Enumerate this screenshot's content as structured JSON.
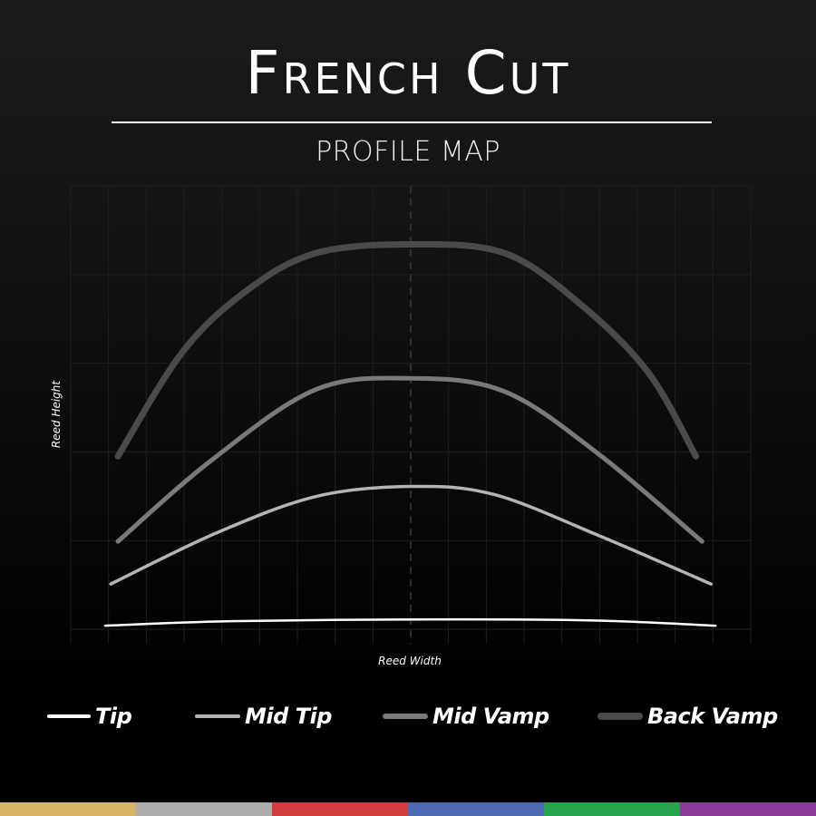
{
  "header": {
    "title": "French Cut",
    "subtitle": "PROFILE MAP"
  },
  "chart_data": {
    "type": "line",
    "xlabel": "Reed Width",
    "ylabel": "Reed Height",
    "xlim": [
      0,
      18
    ],
    "ylim": [
      0,
      5
    ],
    "grid": true,
    "center_line": "dashed",
    "legend_placement": "bottom",
    "series": [
      {
        "name": "Tip",
        "color": "#ffffff",
        "x": [
          0.91,
          4.12,
          9.04,
          13.72,
          17.07
        ],
        "y": [
          0.04,
          0.09,
          0.11,
          0.1,
          0.04
        ]
      },
      {
        "name": "Mid Tip",
        "color": "#b4b4b4",
        "x": [
          1.06,
          3.88,
          6.52,
          9.04,
          11.2,
          13.96,
          16.95
        ],
        "y": [
          0.51,
          1.09,
          1.5,
          1.61,
          1.52,
          1.06,
          0.51
        ]
      },
      {
        "name": "Mid Vamp",
        "color": "#7a7a7a",
        "x": [
          1.25,
          3.65,
          6.47,
          9.04,
          11.49,
          13.96,
          16.71
        ],
        "y": [
          0.99,
          1.88,
          2.7,
          2.83,
          2.68,
          1.98,
          0.99
        ]
      },
      {
        "name": "Back Vamp",
        "color": "#4a4a4a",
        "x": [
          1.25,
          2.93,
          4.6,
          6.47,
          9.04,
          11.49,
          13.48,
          15.28,
          16.55
        ],
        "y": [
          1.95,
          3.11,
          3.8,
          4.24,
          4.34,
          4.24,
          3.67,
          2.9,
          1.95
        ]
      }
    ]
  },
  "colorbar": [
    "#d6b463",
    "#adadad",
    "#d23b3b",
    "#4c68b1",
    "#28a44f",
    "#8a3b97"
  ]
}
